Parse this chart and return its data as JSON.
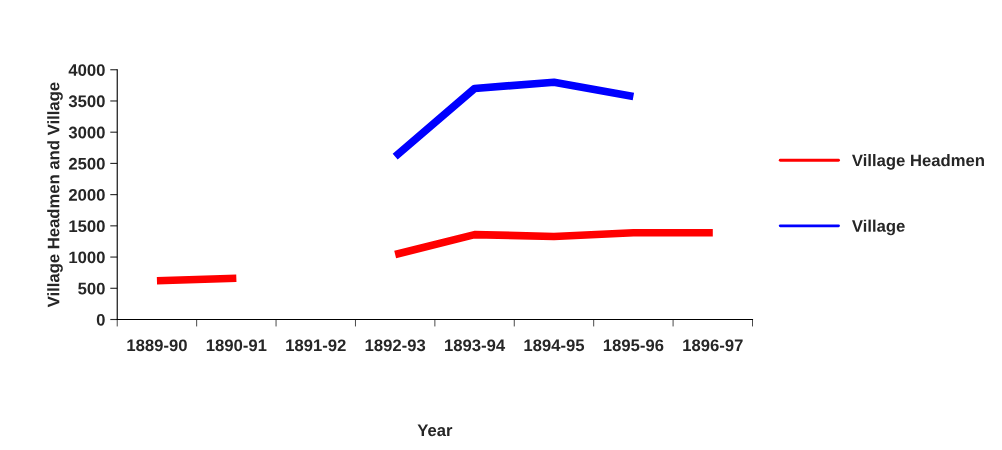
{
  "chart_data": {
    "type": "line",
    "xlabel": "Year",
    "ylabel": "Village Headmen and Village",
    "categories": [
      "1889-90",
      "1890-91",
      "1891-92",
      "1892-93",
      "1893-94",
      "1894-95",
      "1895-96",
      "1896-97"
    ],
    "series": [
      {
        "name": "Village Headmen",
        "color": "#ff0000",
        "values": [
          620,
          660,
          null,
          1040,
          1360,
          1330,
          1390,
          1390
        ]
      },
      {
        "name": "Village",
        "color": "#0000ff",
        "values": [
          null,
          null,
          null,
          2610,
          3700,
          3800,
          3570,
          null
        ]
      }
    ],
    "ylim": [
      0,
      4000
    ],
    "yticks": [
      0,
      500,
      1000,
      1500,
      2000,
      2500,
      3000,
      3500,
      4000
    ],
    "grid": false,
    "legend": "right",
    "marker": "none",
    "line_style": "solid"
  }
}
